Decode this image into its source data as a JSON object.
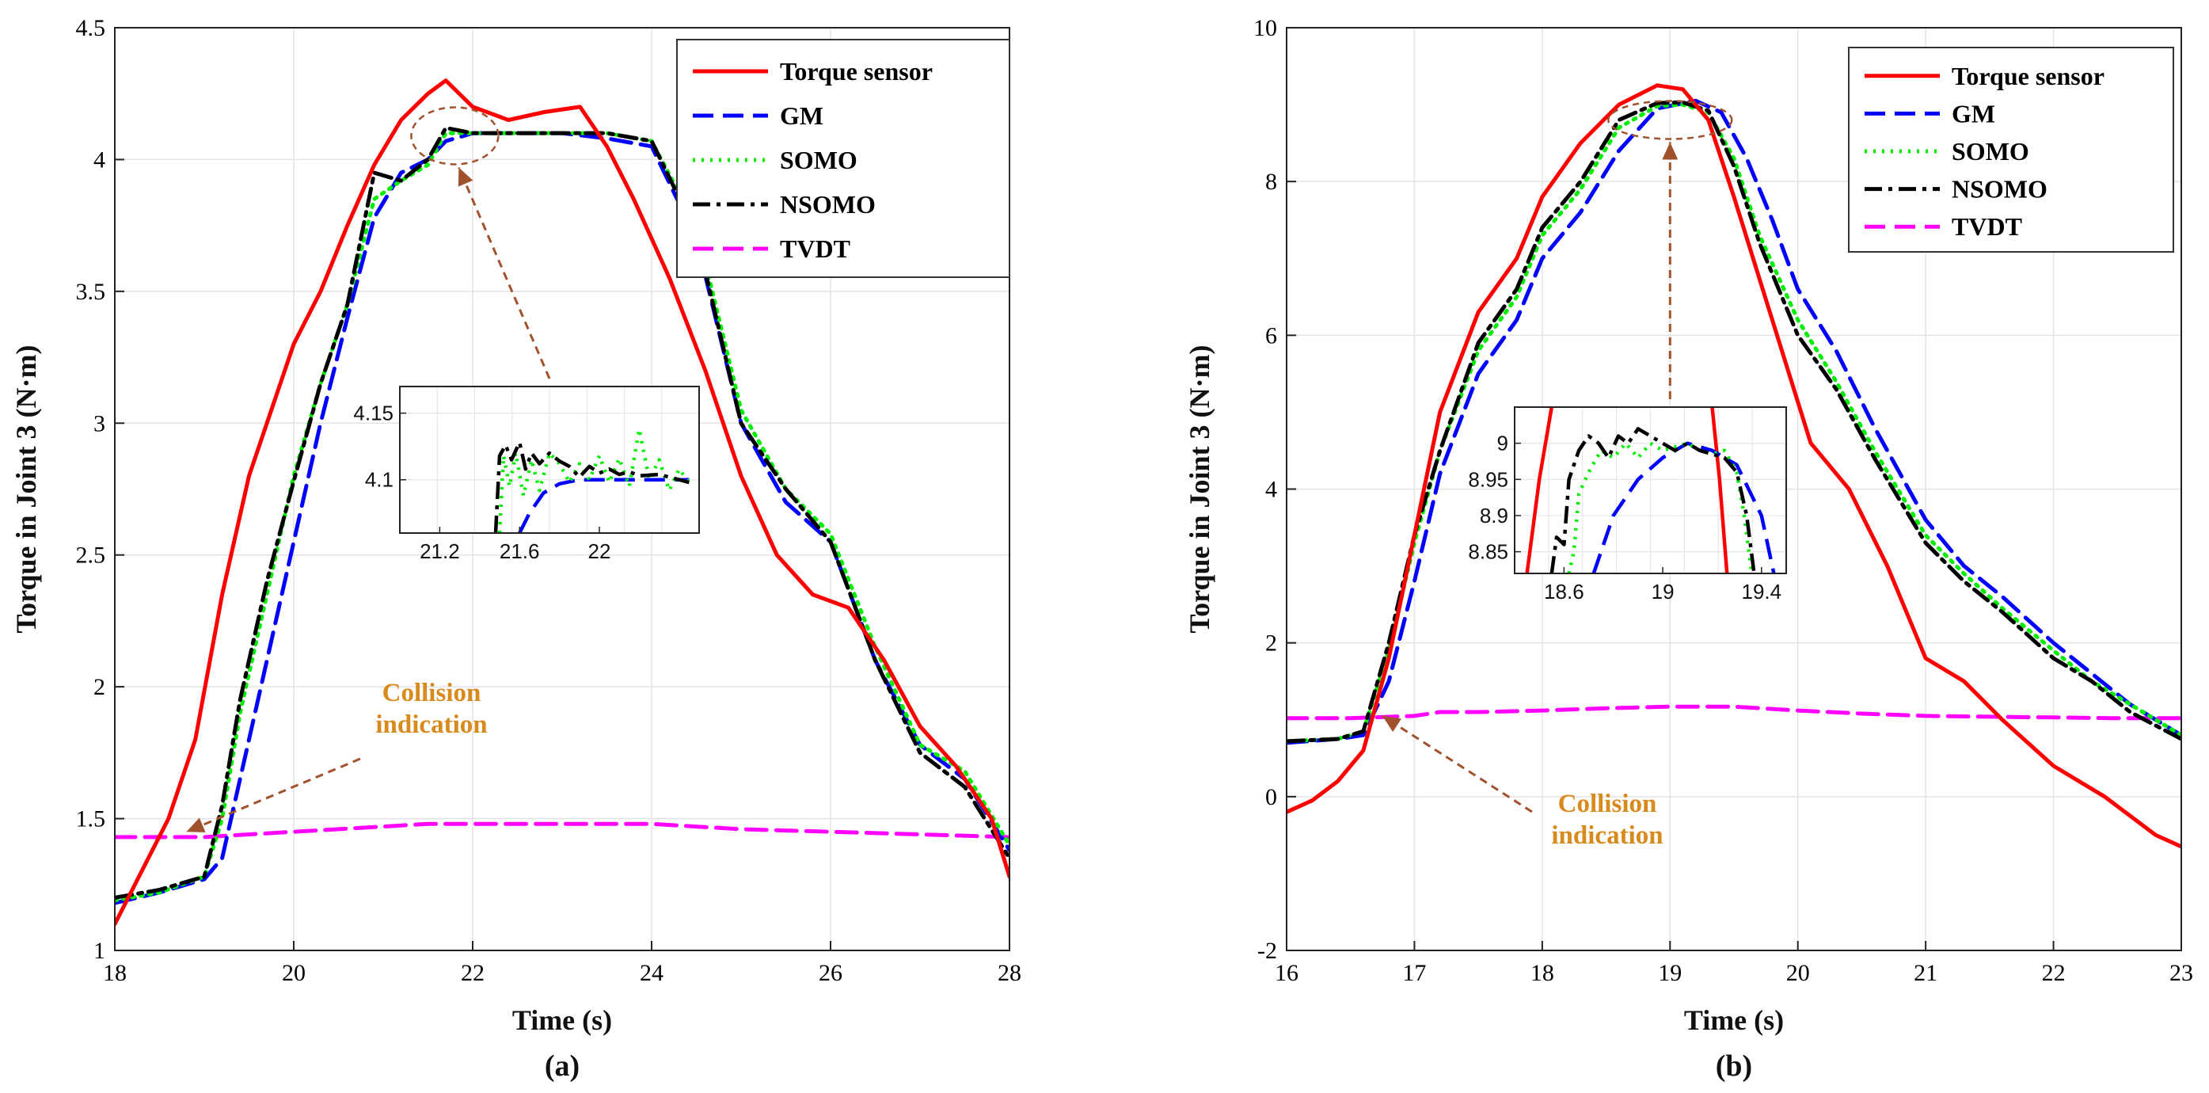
{
  "chart_data": [
    {
      "type": "line",
      "panel": "(a)",
      "xlabel": "Time (s)",
      "ylabel": "Torque in Joint 3 (N·m)",
      "xlim": [
        18,
        28
      ],
      "ylim": [
        1,
        4.5
      ],
      "xticks": [
        18,
        20,
        22,
        24,
        26,
        28
      ],
      "yticks": [
        1,
        1.5,
        2,
        2.5,
        3,
        3.5,
        4,
        4.5
      ],
      "grid": true,
      "legend_position": "top-right",
      "annotation": "Collision\nindication",
      "annotation_target": {
        "x": 18.8,
        "y": 1.45
      },
      "zoom_target": {
        "x": 21.8,
        "y": 4.09
      },
      "series": [
        {
          "name": "Torque sensor",
          "color": "#ff0000",
          "dash": "solid",
          "x": [
            18,
            18.3,
            18.6,
            18.9,
            19.2,
            19.5,
            19.8,
            20,
            20.3,
            20.6,
            20.9,
            21.2,
            21.5,
            21.7,
            22,
            22.4,
            22.8,
            23.2,
            23.5,
            23.8,
            24.2,
            24.6,
            25,
            25.4,
            25.8,
            26.2,
            26.6,
            27,
            27.4,
            27.8,
            28
          ],
          "y": [
            1.1,
            1.3,
            1.5,
            1.8,
            2.35,
            2.8,
            3.1,
            3.3,
            3.5,
            3.75,
            3.98,
            4.15,
            4.25,
            4.3,
            4.2,
            4.15,
            4.18,
            4.2,
            4.05,
            3.85,
            3.55,
            3.2,
            2.8,
            2.5,
            2.35,
            2.3,
            2.1,
            1.85,
            1.7,
            1.5,
            1.28
          ]
        },
        {
          "name": "GM",
          "color": "#0000ff",
          "dash": "long",
          "x": [
            18,
            18.5,
            19,
            19.2,
            19.4,
            19.7,
            20,
            20.3,
            20.6,
            20.9,
            21.2,
            21.5,
            21.7,
            22,
            22.5,
            23,
            23.5,
            24,
            24.5,
            25,
            25.5,
            26,
            26.5,
            27,
            27.5,
            28
          ],
          "y": [
            1.18,
            1.22,
            1.27,
            1.35,
            1.65,
            2.1,
            2.55,
            3.0,
            3.4,
            3.78,
            3.95,
            4.0,
            4.07,
            4.1,
            4.1,
            4.1,
            4.08,
            4.05,
            3.7,
            3.0,
            2.7,
            2.55,
            2.1,
            1.78,
            1.65,
            1.38
          ]
        },
        {
          "name": "SOMO",
          "color": "#00ee00",
          "dash": "dot",
          "x": [
            18,
            18.5,
            19,
            19.2,
            19.4,
            19.7,
            20,
            20.3,
            20.6,
            20.9,
            21.2,
            21.5,
            21.7,
            22,
            22.5,
            23,
            23.5,
            24,
            24.5,
            25,
            25.5,
            26,
            26.5,
            27,
            27.5,
            28
          ],
          "y": [
            1.19,
            1.22,
            1.28,
            1.5,
            1.9,
            2.35,
            2.8,
            3.15,
            3.45,
            3.85,
            3.92,
            3.98,
            4.1,
            4.1,
            4.1,
            4.1,
            4.1,
            4.07,
            3.75,
            3.05,
            2.75,
            2.58,
            2.15,
            1.78,
            1.68,
            1.4
          ]
        },
        {
          "name": "NSOMO",
          "color": "#000000",
          "dash": "dashdot",
          "x": [
            18,
            18.5,
            19,
            19.2,
            19.4,
            19.7,
            20,
            20.3,
            20.6,
            20.9,
            21.2,
            21.5,
            21.7,
            22,
            22.5,
            23,
            23.5,
            24,
            24.5,
            25,
            25.5,
            26,
            26.5,
            27,
            27.5,
            28
          ],
          "y": [
            1.2,
            1.23,
            1.28,
            1.55,
            1.95,
            2.4,
            2.78,
            3.15,
            3.45,
            3.95,
            3.92,
            4.0,
            4.12,
            4.1,
            4.1,
            4.1,
            4.1,
            4.07,
            3.72,
            3.0,
            2.75,
            2.55,
            2.1,
            1.75,
            1.62,
            1.35
          ]
        },
        {
          "name": "TVDT",
          "color": "#ff00ff",
          "dash": "long",
          "x": [
            18,
            19,
            19.5,
            20,
            20.5,
            21,
            21.5,
            22,
            23,
            24,
            24.5,
            25,
            26,
            27,
            28
          ],
          "y": [
            1.43,
            1.43,
            1.44,
            1.45,
            1.46,
            1.47,
            1.48,
            1.48,
            1.48,
            1.48,
            1.47,
            1.46,
            1.45,
            1.44,
            1.43
          ]
        }
      ],
      "inset": {
        "xlim": [
          21,
          22.5
        ],
        "ylim": [
          4.06,
          4.17
        ],
        "xticks": [
          "21.2",
          "21.6",
          "22"
        ],
        "xtick_values": [
          21.2,
          21.6,
          22
        ],
        "yticks": [
          "4.1",
          "4.15"
        ],
        "ytick_values": [
          4.1,
          4.15
        ],
        "series": [
          {
            "name": "GM",
            "x": [
              21.6,
              21.65,
              21.72,
              21.8,
              21.9,
              22.0,
              22.1,
              22.2,
              22.3,
              22.45
            ],
            "y": [
              4.06,
              4.075,
              4.09,
              4.097,
              4.1,
              4.1,
              4.1,
              4.1,
              4.1,
              4.1
            ]
          },
          {
            "name": "SOMO",
            "x": [
              21.5,
              21.52,
              21.55,
              21.58,
              21.62,
              21.66,
              21.7,
              21.75,
              21.8,
              21.85,
              21.9,
              21.95,
              22.0,
              22.05,
              22.1,
              22.15,
              22.2,
              22.25,
              22.3,
              22.35,
              22.4,
              22.45
            ],
            "y": [
              4.06,
              4.118,
              4.095,
              4.12,
              4.088,
              4.115,
              4.092,
              4.12,
              4.112,
              4.098,
              4.112,
              4.1,
              4.118,
              4.098,
              4.116,
              4.095,
              4.138,
              4.1,
              4.115,
              4.092,
              4.108,
              4.098
            ]
          },
          {
            "name": "NSOMO",
            "x": [
              21.48,
              21.5,
              21.53,
              21.56,
              21.6,
              21.63,
              21.66,
              21.7,
              21.75,
              21.8,
              21.85,
              21.9,
              21.95,
              22.0,
              22.05,
              22.1,
              22.15,
              22.2,
              22.3,
              22.45
            ],
            "y": [
              4.06,
              4.118,
              4.126,
              4.115,
              4.128,
              4.108,
              4.12,
              4.112,
              4.12,
              4.114,
              4.11,
              4.102,
              4.11,
              4.105,
              4.108,
              4.104,
              4.106,
              4.103,
              4.104,
              4.098
            ]
          }
        ]
      }
    },
    {
      "type": "line",
      "panel": "(b)",
      "xlabel": "Time (s)",
      "ylabel": "Torque in Joint 3 (N·m)",
      "xlim": [
        16,
        23
      ],
      "ylim": [
        -2,
        10
      ],
      "xticks": [
        16,
        17,
        18,
        19,
        20,
        21,
        22,
        23
      ],
      "yticks": [
        -2,
        0,
        2,
        4,
        6,
        8,
        10
      ],
      "grid": true,
      "legend_position": "top-right",
      "annotation": "Collision\nindication",
      "annotation_target": {
        "x": 16.75,
        "y": 1.05
      },
      "zoom_target": {
        "x": 19.0,
        "y": 8.8
      },
      "series": [
        {
          "name": "Torque sensor",
          "color": "#ff0000",
          "dash": "solid",
          "x": [
            16,
            16.2,
            16.4,
            16.6,
            16.8,
            17,
            17.2,
            17.5,
            17.8,
            18,
            18.3,
            18.6,
            18.9,
            19.1,
            19.3,
            19.5,
            19.8,
            20.1,
            20.4,
            20.7,
            21,
            21.3,
            21.6,
            22,
            22.4,
            22.8,
            23
          ],
          "y": [
            -0.2,
            -0.05,
            0.2,
            0.6,
            1.8,
            3.4,
            5.0,
            6.3,
            7.0,
            7.8,
            8.5,
            9.0,
            9.25,
            9.2,
            8.8,
            7.8,
            6.2,
            4.6,
            4.0,
            3.0,
            1.8,
            1.5,
            1.0,
            0.4,
            0.0,
            -0.5,
            -0.65
          ]
        },
        {
          "name": "GM",
          "color": "#0000ff",
          "dash": "long",
          "x": [
            16,
            16.4,
            16.6,
            16.8,
            17,
            17.2,
            17.5,
            17.8,
            18,
            18.3,
            18.6,
            18.9,
            19.2,
            19.4,
            19.6,
            19.8,
            20,
            20.3,
            20.6,
            21,
            21.3,
            21.6,
            22,
            22.3,
            22.6,
            23
          ],
          "y": [
            0.7,
            0.75,
            0.8,
            1.5,
            2.8,
            4.2,
            5.5,
            6.2,
            7.0,
            7.6,
            8.4,
            8.95,
            9.05,
            8.9,
            8.3,
            7.5,
            6.6,
            5.8,
            4.8,
            3.6,
            3.0,
            2.6,
            2.0,
            1.6,
            1.2,
            0.8
          ]
        },
        {
          "name": "SOMO",
          "color": "#00ee00",
          "dash": "dot",
          "x": [
            16,
            16.4,
            16.6,
            16.8,
            17,
            17.2,
            17.5,
            17.8,
            18,
            18.3,
            18.6,
            18.9,
            19.1,
            19.3,
            19.5,
            19.7,
            20,
            20.3,
            20.6,
            21,
            21.3,
            21.6,
            22,
            22.3,
            22.6,
            23
          ],
          "y": [
            0.72,
            0.75,
            0.85,
            1.9,
            3.3,
            4.5,
            5.8,
            6.5,
            7.3,
            7.9,
            8.7,
            8.98,
            9.0,
            8.9,
            8.3,
            7.3,
            6.2,
            5.4,
            4.5,
            3.4,
            2.9,
            2.45,
            1.9,
            1.5,
            1.2,
            0.8
          ]
        },
        {
          "name": "NSOMO",
          "color": "#000000",
          "dash": "dashdot",
          "x": [
            16,
            16.4,
            16.6,
            16.8,
            17,
            17.2,
            17.5,
            17.8,
            18,
            18.3,
            18.6,
            18.9,
            19.1,
            19.3,
            19.5,
            19.7,
            20,
            20.3,
            20.6,
            21,
            21.3,
            21.6,
            22,
            22.3,
            22.6,
            23
          ],
          "y": [
            0.72,
            0.75,
            0.85,
            2.0,
            3.4,
            4.5,
            5.9,
            6.6,
            7.4,
            8.0,
            8.8,
            9.02,
            9.03,
            8.92,
            8.2,
            7.2,
            6.0,
            5.3,
            4.4,
            3.3,
            2.8,
            2.4,
            1.8,
            1.5,
            1.1,
            0.75
          ]
        },
        {
          "name": "TVDT",
          "color": "#ff00ff",
          "dash": "long",
          "x": [
            16,
            16.5,
            17,
            17.2,
            17.5,
            18,
            18.5,
            19,
            19.5,
            20,
            20.5,
            21,
            21.5,
            22,
            22.5,
            23
          ],
          "y": [
            1.02,
            1.02,
            1.05,
            1.1,
            1.1,
            1.12,
            1.15,
            1.17,
            1.17,
            1.12,
            1.08,
            1.05,
            1.04,
            1.03,
            1.02,
            1.02
          ]
        }
      ],
      "inset": {
        "xlim": [
          18.4,
          19.5
        ],
        "ylim": [
          8.82,
          9.05
        ],
        "xticks": [
          "18.6",
          "19",
          "19.4"
        ],
        "xtick_values": [
          18.6,
          19.0,
          19.4
        ],
        "yticks": [
          "8.85",
          "8.9",
          "8.95",
          "9"
        ],
        "ytick_values": [
          8.85,
          8.9,
          8.95,
          9.0
        ],
        "series": [
          {
            "name": "Torque sensor",
            "x": [
              18.45,
              18.5,
              18.55
            ],
            "y": [
              8.82,
              8.95,
              9.05
            ]
          },
          {
            "name": "Torque sensor",
            "x": [
              19.2,
              19.23,
              19.26
            ],
            "y": [
              9.05,
              8.95,
              8.82
            ]
          },
          {
            "name": "GM",
            "x": [
              18.72,
              18.8,
              18.9,
              19.0,
              19.1,
              19.2,
              19.3,
              19.4,
              19.45
            ],
            "y": [
              8.82,
              8.9,
              8.95,
              8.98,
              9.0,
              8.99,
              8.97,
              8.9,
              8.82
            ]
          },
          {
            "name": "SOMO",
            "x": [
              18.62,
              18.64,
              18.66,
              18.7,
              18.75,
              18.8,
              18.85,
              18.9,
              18.95,
              19.0,
              19.05,
              19.1,
              19.15,
              19.2,
              19.25,
              19.3,
              19.33,
              19.36
            ],
            "y": [
              8.82,
              8.85,
              8.93,
              8.96,
              8.99,
              8.98,
              9.0,
              8.98,
              9.0,
              8.99,
              8.995,
              9.0,
              8.99,
              8.985,
              8.99,
              8.96,
              8.9,
              8.82
            ]
          },
          {
            "name": "NSOMO",
            "x": [
              18.55,
              18.57,
              18.6,
              18.62,
              18.66,
              18.7,
              18.74,
              18.78,
              18.82,
              18.86,
              18.9,
              18.95,
              19.0,
              19.05,
              19.1,
              19.15,
              19.2,
              19.25,
              19.3,
              19.34,
              19.37
            ],
            "y": [
              8.82,
              8.87,
              8.86,
              8.95,
              8.99,
              9.01,
              9.0,
              8.98,
              9.01,
              9.0,
              9.02,
              9.01,
              9.0,
              8.99,
              9.0,
              8.99,
              8.985,
              8.98,
              8.96,
              8.9,
              8.82
            ]
          }
        ]
      }
    }
  ]
}
